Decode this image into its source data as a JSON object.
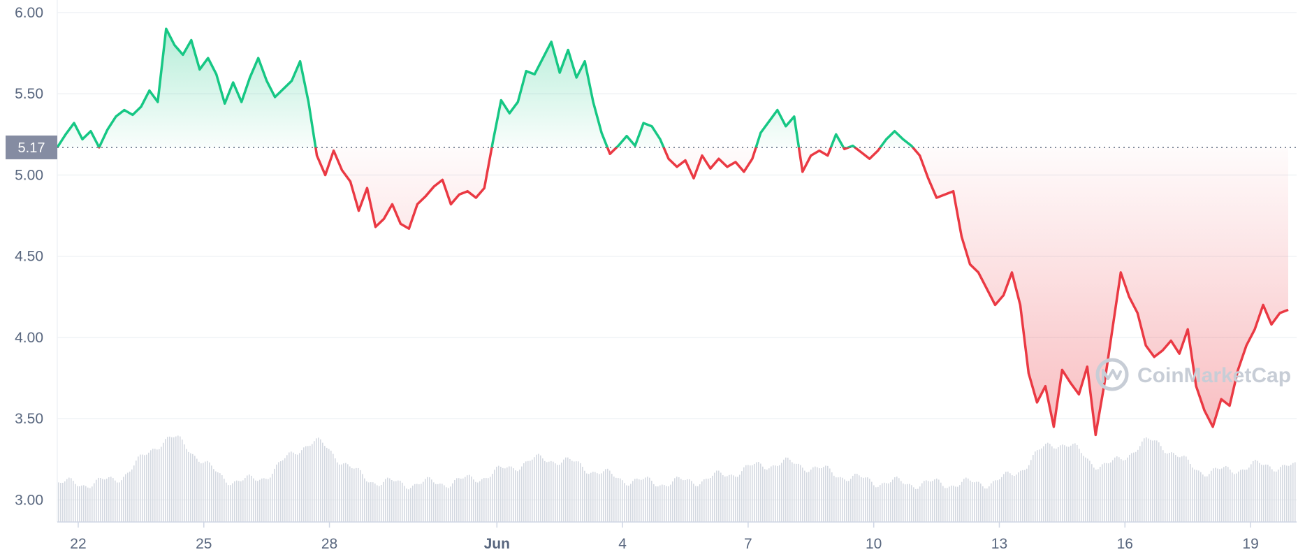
{
  "chart_data": {
    "type": "line",
    "title": "",
    "xlabel": "",
    "ylabel": "",
    "ylim": [
      2.95,
      6.0
    ],
    "yticks": [
      "3.00",
      "3.50",
      "4.00",
      "4.50",
      "5.00",
      "5.50",
      "6.00"
    ],
    "xticks": [
      {
        "label": "22",
        "day": 22
      },
      {
        "label": "25",
        "day": 25
      },
      {
        "label": "28",
        "day": 28
      },
      {
        "label": "Jun",
        "day": 32,
        "bold": true
      },
      {
        "label": "4",
        "day": 35
      },
      {
        "label": "7",
        "day": 38
      },
      {
        "label": "10",
        "day": 41
      },
      {
        "label": "13",
        "day": 44
      },
      {
        "label": "16",
        "day": 47
      },
      {
        "label": "19",
        "day": 50
      }
    ],
    "reference_value": 5.17,
    "reference_label": "5.17",
    "colors": {
      "up": "#16c784",
      "down": "#ea3943",
      "grid": "#eff2f5",
      "volume": "#d4d9e1",
      "label_bg": "#858ca2"
    },
    "grid": true,
    "watermark": "CoinMarketCap",
    "series": [
      {
        "values": [
          [
            21.5,
            5.17
          ],
          [
            21.7,
            5.25
          ],
          [
            21.9,
            5.32
          ],
          [
            22.1,
            5.22
          ],
          [
            22.3,
            5.27
          ],
          [
            22.5,
            5.17
          ],
          [
            22.7,
            5.28
          ],
          [
            22.9,
            5.36
          ],
          [
            23.1,
            5.4
          ],
          [
            23.3,
            5.37
          ],
          [
            23.5,
            5.42
          ],
          [
            23.7,
            5.52
          ],
          [
            23.9,
            5.45
          ],
          [
            24.1,
            5.9
          ],
          [
            24.3,
            5.8
          ],
          [
            24.5,
            5.74
          ],
          [
            24.7,
            5.83
          ],
          [
            24.9,
            5.65
          ],
          [
            25.1,
            5.72
          ],
          [
            25.3,
            5.62
          ],
          [
            25.5,
            5.44
          ],
          [
            25.7,
            5.57
          ],
          [
            25.9,
            5.45
          ],
          [
            26.1,
            5.6
          ],
          [
            26.3,
            5.72
          ],
          [
            26.5,
            5.58
          ],
          [
            26.7,
            5.48
          ],
          [
            26.9,
            5.53
          ],
          [
            27.1,
            5.58
          ],
          [
            27.3,
            5.7
          ],
          [
            27.5,
            5.45
          ],
          [
            27.7,
            5.12
          ],
          [
            27.9,
            5.0
          ],
          [
            28.1,
            5.15
          ],
          [
            28.3,
            5.03
          ],
          [
            28.5,
            4.96
          ],
          [
            28.7,
            4.78
          ],
          [
            28.9,
            4.92
          ],
          [
            29.1,
            4.68
          ],
          [
            29.3,
            4.73
          ],
          [
            29.5,
            4.82
          ],
          [
            29.7,
            4.7
          ],
          [
            29.9,
            4.67
          ],
          [
            30.1,
            4.82
          ],
          [
            30.3,
            4.87
          ],
          [
            30.5,
            4.93
          ],
          [
            30.7,
            4.97
          ],
          [
            30.9,
            4.82
          ],
          [
            31.1,
            4.88
          ],
          [
            31.3,
            4.9
          ],
          [
            31.5,
            4.86
          ],
          [
            31.7,
            4.92
          ],
          [
            31.9,
            5.2
          ],
          [
            32.1,
            5.46
          ],
          [
            32.3,
            5.38
          ],
          [
            32.5,
            5.45
          ],
          [
            32.7,
            5.64
          ],
          [
            32.9,
            5.62
          ],
          [
            33.1,
            5.72
          ],
          [
            33.3,
            5.82
          ],
          [
            33.5,
            5.63
          ],
          [
            33.7,
            5.77
          ],
          [
            33.9,
            5.6
          ],
          [
            34.1,
            5.7
          ],
          [
            34.3,
            5.45
          ],
          [
            34.5,
            5.26
          ],
          [
            34.7,
            5.13
          ],
          [
            34.9,
            5.18
          ],
          [
            35.1,
            5.24
          ],
          [
            35.3,
            5.18
          ],
          [
            35.5,
            5.32
          ],
          [
            35.7,
            5.3
          ],
          [
            35.9,
            5.22
          ],
          [
            36.1,
            5.1
          ],
          [
            36.3,
            5.05
          ],
          [
            36.5,
            5.09
          ],
          [
            36.7,
            4.98
          ],
          [
            36.9,
            5.12
          ],
          [
            37.1,
            5.04
          ],
          [
            37.3,
            5.1
          ],
          [
            37.5,
            5.05
          ],
          [
            37.7,
            5.08
          ],
          [
            37.9,
            5.02
          ],
          [
            38.1,
            5.1
          ],
          [
            38.3,
            5.26
          ],
          [
            38.5,
            5.33
          ],
          [
            38.7,
            5.4
          ],
          [
            38.9,
            5.3
          ],
          [
            39.1,
            5.36
          ],
          [
            39.3,
            5.02
          ],
          [
            39.5,
            5.12
          ],
          [
            39.7,
            5.15
          ],
          [
            39.9,
            5.12
          ],
          [
            40.1,
            5.25
          ],
          [
            40.3,
            5.16
          ],
          [
            40.5,
            5.18
          ],
          [
            40.7,
            5.14
          ],
          [
            40.9,
            5.1
          ],
          [
            41.1,
            5.15
          ],
          [
            41.3,
            5.22
          ],
          [
            41.5,
            5.27
          ],
          [
            41.7,
            5.22
          ],
          [
            41.9,
            5.18
          ],
          [
            42.1,
            5.12
          ],
          [
            42.3,
            4.98
          ],
          [
            42.5,
            4.86
          ],
          [
            42.7,
            4.88
          ],
          [
            42.9,
            4.9
          ],
          [
            43.1,
            4.62
          ],
          [
            43.3,
            4.45
          ],
          [
            43.5,
            4.4
          ],
          [
            43.7,
            4.3
          ],
          [
            43.9,
            4.2
          ],
          [
            44.1,
            4.26
          ],
          [
            44.3,
            4.4
          ],
          [
            44.5,
            4.2
          ],
          [
            44.7,
            3.78
          ],
          [
            44.9,
            3.6
          ],
          [
            45.1,
            3.7
          ],
          [
            45.3,
            3.45
          ],
          [
            45.5,
            3.8
          ],
          [
            45.7,
            3.72
          ],
          [
            45.9,
            3.65
          ],
          [
            46.1,
            3.82
          ],
          [
            46.3,
            3.4
          ],
          [
            46.5,
            3.7
          ],
          [
            46.7,
            4.05
          ],
          [
            46.9,
            4.4
          ],
          [
            47.1,
            4.25
          ],
          [
            47.3,
            4.15
          ],
          [
            47.5,
            3.95
          ],
          [
            47.7,
            3.88
          ],
          [
            47.9,
            3.92
          ],
          [
            48.1,
            3.98
          ],
          [
            48.3,
            3.9
          ],
          [
            48.5,
            4.05
          ],
          [
            48.7,
            3.7
          ],
          [
            48.9,
            3.55
          ],
          [
            49.1,
            3.45
          ],
          [
            49.3,
            3.62
          ],
          [
            49.5,
            3.58
          ],
          [
            49.7,
            3.8
          ],
          [
            49.9,
            3.95
          ],
          [
            50.1,
            4.05
          ],
          [
            50.3,
            4.2
          ],
          [
            50.5,
            4.08
          ],
          [
            50.7,
            4.15
          ],
          [
            50.9,
            4.17
          ]
        ]
      }
    ]
  }
}
